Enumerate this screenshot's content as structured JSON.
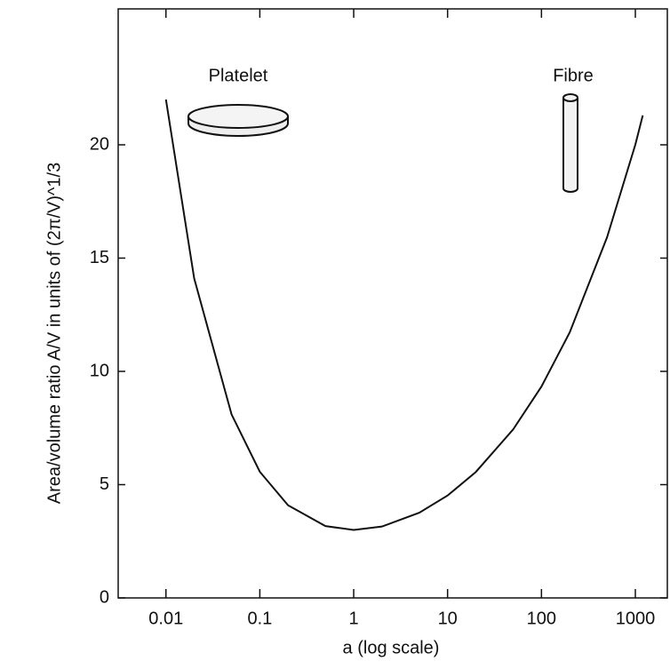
{
  "chart_data": {
    "type": "line",
    "x_label": "a (log scale)",
    "y_label": "Area/volume ratio A/V in units of (2π/V)^1/3",
    "annotations": [
      "Platelet",
      "Fibre"
    ],
    "x": [
      0.01,
      0.02,
      0.05,
      0.1,
      0.2,
      0.5,
      1,
      2,
      5,
      10,
      20,
      50,
      100,
      200,
      500,
      1000,
      1200
    ],
    "series": [
      {
        "color": "#111111",
        "values": [
          22.0,
          14.1,
          8.1,
          5.57,
          4.09,
          3.17,
          3.0,
          3.15,
          3.76,
          4.52,
          5.56,
          7.44,
          9.33,
          11.72,
          15.92,
          20.01,
          21.3
        ]
      }
    ],
    "xscale": "log",
    "xlim": [
      0.0031,
      2240
    ],
    "xticks": [
      0.01,
      0.1,
      1,
      10,
      100,
      1000
    ],
    "ylim": [
      0,
      26
    ],
    "yticks": [
      0,
      5,
      10,
      15,
      20
    ]
  }
}
